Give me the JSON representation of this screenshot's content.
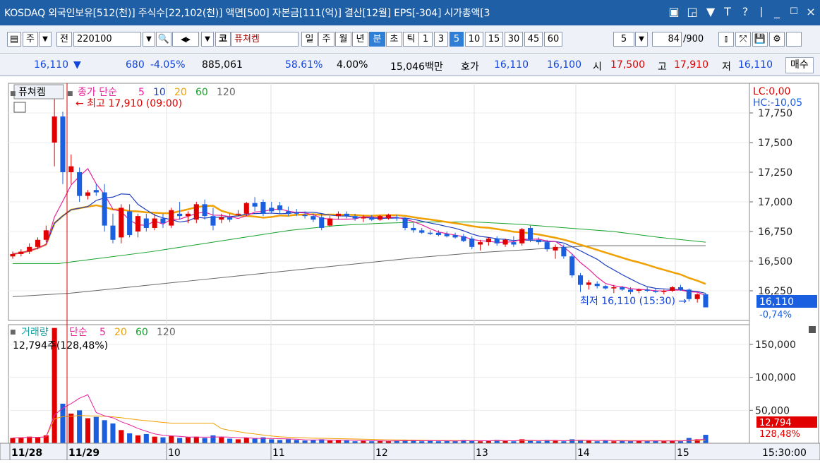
{
  "window": {
    "title": "KOSDAQ 외국인보유[512(천)] 주식수[22,102(천)] 액면[500] 자본금[111(억)] 결산[12월] EPS[-304] 시가총액[3"
  },
  "toolbar": {
    "type_label": "주",
    "period_label": "전",
    "code": "220100",
    "market_label": "코",
    "stock_name": "퓨쳐켐",
    "period_buttons": [
      "일",
      "주",
      "월",
      "년",
      "분",
      "초",
      "틱"
    ],
    "active_period": "분",
    "interval_buttons": [
      "1",
      "3",
      "5",
      "10",
      "15",
      "30",
      "45",
      "60"
    ],
    "active_interval": "5",
    "interval_select": "5",
    "count": "84",
    "count_total": "/900"
  },
  "quote": {
    "price": "16,110",
    "change_arrow": "▼",
    "change": "680",
    "change_pct": "-4.05%",
    "volume": "885,061",
    "vol_ratio": "58.61%",
    "turnover": "4.00%",
    "amount": "15,046백만",
    "bid_label": "호가",
    "ask": "16,110",
    "bid": "16,100",
    "open_label": "시",
    "open": "17,500",
    "high_label": "고",
    "high": "17,910",
    "low_label": "저",
    "low": "16,110",
    "sell_label": "매수"
  },
  "price_panel": {
    "name_tag": "퓨쳐켐",
    "legend_prefix": "종가 단순",
    "ma_labels": [
      "5",
      "10",
      "20",
      "60",
      "120"
    ],
    "ma_colors": [
      "#e8209c",
      "#1f3fbf",
      "#f0a000",
      "#17a22b",
      "#666666"
    ],
    "lc": "LC:0,00",
    "hc": "HC:-10,05",
    "high_annotation": "최고 17,910 (09:00)",
    "low_annotation": "최저 16,110 (15:30)",
    "last_price_tag": "16,110",
    "last_change_tag": "-0,74%",
    "y_ticks": [
      "17,750",
      "17,500",
      "17,250",
      "17,000",
      "16,750",
      "16,500",
      "16,250"
    ]
  },
  "volume_panel": {
    "legend_label": "거래량",
    "legend_prefix": "단순",
    "ma_labels": [
      "5",
      "20",
      "60",
      "120"
    ],
    "current": "12,794주(128,48%)",
    "last_tag": "12,794",
    "last_pct_tag": "128,48%",
    "y_ticks": [
      "150,000",
      "100,000",
      "50,000"
    ]
  },
  "x_axis": {
    "labels": [
      "11/28",
      "11/29",
      "10",
      "11",
      "12",
      "13",
      "14",
      "15"
    ],
    "time_label": "15:30:00"
  },
  "chart_data": {
    "type": "candlestick",
    "y_range": [
      16000,
      18000
    ],
    "volume_range": [
      0,
      180000
    ],
    "candles": [
      {
        "o": 16540,
        "h": 16580,
        "l": 16520,
        "c": 16560
      },
      {
        "o": 16560,
        "h": 16600,
        "l": 16540,
        "c": 16580
      },
      {
        "o": 16580,
        "h": 16650,
        "l": 16560,
        "c": 16620
      },
      {
        "o": 16620,
        "h": 16700,
        "l": 16600,
        "c": 16680
      },
      {
        "o": 16680,
        "h": 16800,
        "l": 16660,
        "c": 16760
      },
      {
        "o": 17500,
        "h": 17910,
        "l": 17300,
        "c": 17720
      },
      {
        "o": 17720,
        "h": 17760,
        "l": 17150,
        "c": 17250
      },
      {
        "o": 17250,
        "h": 17400,
        "l": 17150,
        "c": 17300
      },
      {
        "o": 17250,
        "h": 17290,
        "l": 17000,
        "c": 17050
      },
      {
        "o": 17050,
        "h": 17100,
        "l": 17020,
        "c": 17080
      },
      {
        "o": 17100,
        "h": 17150,
        "l": 17050,
        "c": 17080
      },
      {
        "o": 17080,
        "h": 17150,
        "l": 16750,
        "c": 16800
      },
      {
        "o": 16800,
        "h": 16900,
        "l": 16650,
        "c": 16680
      },
      {
        "o": 16700,
        "h": 16980,
        "l": 16650,
        "c": 16950
      },
      {
        "o": 16920,
        "h": 16980,
        "l": 16700,
        "c": 16720
      },
      {
        "o": 16750,
        "h": 16900,
        "l": 16700,
        "c": 16880
      },
      {
        "o": 16860,
        "h": 16900,
        "l": 16750,
        "c": 16780
      },
      {
        "o": 16780,
        "h": 16900,
        "l": 16760,
        "c": 16860
      },
      {
        "o": 16860,
        "h": 16900,
        "l": 16780,
        "c": 16820
      },
      {
        "o": 16800,
        "h": 16950,
        "l": 16780,
        "c": 16930
      },
      {
        "o": 16900,
        "h": 17000,
        "l": 16850,
        "c": 16880
      },
      {
        "o": 16880,
        "h": 16920,
        "l": 16820,
        "c": 16900
      },
      {
        "o": 16850,
        "h": 17000,
        "l": 16820,
        "c": 16980
      },
      {
        "o": 16980,
        "h": 17020,
        "l": 16850,
        "c": 16880
      },
      {
        "o": 16880,
        "h": 16950,
        "l": 16760,
        "c": 16800
      },
      {
        "o": 16850,
        "h": 16900,
        "l": 16820,
        "c": 16870
      },
      {
        "o": 16870,
        "h": 16900,
        "l": 16830,
        "c": 16850
      },
      {
        "o": 16900,
        "h": 16930,
        "l": 16880,
        "c": 16900
      },
      {
        "o": 16900,
        "h": 17000,
        "l": 16880,
        "c": 16990
      },
      {
        "o": 16990,
        "h": 17040,
        "l": 16920,
        "c": 16960
      },
      {
        "o": 17000,
        "h": 17020,
        "l": 16880,
        "c": 16900
      },
      {
        "o": 16950,
        "h": 17000,
        "l": 16900,
        "c": 16920
      },
      {
        "o": 16970,
        "h": 17000,
        "l": 16900,
        "c": 16930
      },
      {
        "o": 16920,
        "h": 16960,
        "l": 16880,
        "c": 16900
      },
      {
        "o": 16910,
        "h": 16940,
        "l": 16880,
        "c": 16900
      },
      {
        "o": 16890,
        "h": 16920,
        "l": 16860,
        "c": 16880
      },
      {
        "o": 16880,
        "h": 16900,
        "l": 16830,
        "c": 16850
      },
      {
        "o": 16870,
        "h": 16900,
        "l": 16760,
        "c": 16780
      },
      {
        "o": 16800,
        "h": 16880,
        "l": 16790,
        "c": 16860
      },
      {
        "o": 16880,
        "h": 16920,
        "l": 16850,
        "c": 16900
      },
      {
        "o": 16900,
        "h": 16920,
        "l": 16860,
        "c": 16880
      },
      {
        "o": 16880,
        "h": 16900,
        "l": 16840,
        "c": 16860
      },
      {
        "o": 16860,
        "h": 16890,
        "l": 16830,
        "c": 16870
      },
      {
        "o": 16870,
        "h": 16890,
        "l": 16840,
        "c": 16850
      },
      {
        "o": 16850,
        "h": 16890,
        "l": 16840,
        "c": 16880
      },
      {
        "o": 16860,
        "h": 16900,
        "l": 16850,
        "c": 16890
      },
      {
        "o": 16870,
        "h": 16890,
        "l": 16840,
        "c": 16860
      },
      {
        "o": 16860,
        "h": 16870,
        "l": 16760,
        "c": 16780
      },
      {
        "o": 16780,
        "h": 16820,
        "l": 16740,
        "c": 16760
      },
      {
        "o": 16760,
        "h": 16780,
        "l": 16730,
        "c": 16740
      },
      {
        "o": 16740,
        "h": 16760,
        "l": 16720,
        "c": 16730
      },
      {
        "o": 16740,
        "h": 16760,
        "l": 16710,
        "c": 16720
      },
      {
        "o": 16730,
        "h": 16750,
        "l": 16700,
        "c": 16710
      },
      {
        "o": 16720,
        "h": 16740,
        "l": 16690,
        "c": 16700
      },
      {
        "o": 16710,
        "h": 16730,
        "l": 16660,
        "c": 16670
      },
      {
        "o": 16690,
        "h": 16710,
        "l": 16600,
        "c": 16620
      },
      {
        "o": 16640,
        "h": 16680,
        "l": 16590,
        "c": 16660
      },
      {
        "o": 16660,
        "h": 16700,
        "l": 16630,
        "c": 16690
      },
      {
        "o": 16690,
        "h": 16710,
        "l": 16630,
        "c": 16650
      },
      {
        "o": 16640,
        "h": 16690,
        "l": 16620,
        "c": 16680
      },
      {
        "o": 16660,
        "h": 16710,
        "l": 16620,
        "c": 16640
      },
      {
        "o": 16650,
        "h": 16780,
        "l": 16630,
        "c": 16770
      },
      {
        "o": 16780,
        "h": 16800,
        "l": 16660,
        "c": 16680
      },
      {
        "o": 16680,
        "h": 16700,
        "l": 16640,
        "c": 16660
      },
      {
        "o": 16660,
        "h": 16680,
        "l": 16580,
        "c": 16600
      },
      {
        "o": 16590,
        "h": 16640,
        "l": 16520,
        "c": 16620
      },
      {
        "o": 16620,
        "h": 16640,
        "l": 16520,
        "c": 16540
      },
      {
        "o": 16540,
        "h": 16560,
        "l": 16360,
        "c": 16380
      },
      {
        "o": 16380,
        "h": 16400,
        "l": 16240,
        "c": 16300
      },
      {
        "o": 16300,
        "h": 16340,
        "l": 16260,
        "c": 16320
      },
      {
        "o": 16310,
        "h": 16330,
        "l": 16270,
        "c": 16290
      },
      {
        "o": 16290,
        "h": 16300,
        "l": 16260,
        "c": 16270
      },
      {
        "o": 16270,
        "h": 16300,
        "l": 16230,
        "c": 16280
      },
      {
        "o": 16280,
        "h": 16290,
        "l": 16250,
        "c": 16260
      },
      {
        "o": 16260,
        "h": 16280,
        "l": 16220,
        "c": 16240
      },
      {
        "o": 16250,
        "h": 16270,
        "l": 16230,
        "c": 16260
      },
      {
        "o": 16260,
        "h": 16280,
        "l": 16240,
        "c": 16250
      },
      {
        "o": 16250,
        "h": 16270,
        "l": 16230,
        "c": 16240
      },
      {
        "o": 16240,
        "h": 16260,
        "l": 16220,
        "c": 16250
      },
      {
        "o": 16250,
        "h": 16290,
        "l": 16240,
        "c": 16280
      },
      {
        "o": 16280,
        "h": 16300,
        "l": 16250,
        "c": 16260
      },
      {
        "o": 16260,
        "h": 16270,
        "l": 16160,
        "c": 16180
      },
      {
        "o": 16180,
        "h": 16230,
        "l": 16150,
        "c": 16220
      },
      {
        "o": 16220,
        "h": 16230,
        "l": 16110,
        "c": 16110
      }
    ],
    "volumes": [
      8000,
      9000,
      10000,
      9000,
      12000,
      175000,
      60000,
      45000,
      50000,
      38000,
      40000,
      35000,
      30000,
      20000,
      15000,
      12000,
      14000,
      10000,
      9000,
      11000,
      8000,
      9000,
      10000,
      8000,
      12000,
      9000,
      7000,
      6000,
      8000,
      7000,
      9000,
      6000,
      5000,
      6000,
      5000,
      4000,
      5000,
      6000,
      4000,
      5000,
      4000,
      3000,
      4000,
      3000,
      4000,
      3000,
      4000,
      5000,
      4000,
      3000,
      4000,
      3000,
      4000,
      3000,
      5000,
      4000,
      3000,
      4000,
      5000,
      4000,
      3000,
      6000,
      4000,
      3000,
      5000,
      4000,
      3000,
      6000,
      5000,
      4000,
      3000,
      4000,
      3000,
      4000,
      3000,
      4000,
      3000,
      4000,
      3000,
      4000,
      3000,
      8000,
      6000,
      12794
    ],
    "ma_lines": {
      "120": [
        [
          16200,
          16230,
          16280,
          16330,
          16380,
          16430,
          16480,
          16530,
          16570,
          16600,
          16630,
          16630,
          16630
        ]
      ],
      "60": [
        [
          16480,
          16480,
          16530,
          16580,
          16640,
          16700,
          16760,
          16800,
          16820,
          16830,
          16830,
          16810,
          16780,
          16750,
          16700,
          16660
        ]
      ]
    }
  }
}
